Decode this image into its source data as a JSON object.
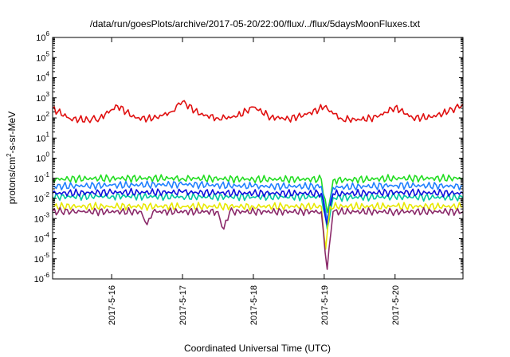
{
  "chart_data": {
    "type": "line",
    "title": "/data/run/goesPlots/archive/2017-05-20/22:00/flux/../flux/5daysMoonFluxes.txt",
    "xlabel": "Coordinated Universal Time (UTC)",
    "ylabel_parts": {
      "base": "protons/cm",
      "sup": "2",
      "rest": "-s-sr-MeV"
    },
    "x_range": [
      "2017-05-15 04:00",
      "2017-05-20 23:00"
    ],
    "x_ticks": [
      "2017-5-16",
      "2017-5-17",
      "2017-5-18",
      "2017-5-19",
      "2017-5-20"
    ],
    "y_scale": "log",
    "ylim": [
      1e-06,
      1000000.0
    ],
    "y_ticks": [
      {
        "base": "10",
        "exp": "-6"
      },
      {
        "base": "10",
        "exp": "-5"
      },
      {
        "base": "10",
        "exp": "-4"
      },
      {
        "base": "10",
        "exp": "-3"
      },
      {
        "base": "10",
        "exp": "-2"
      },
      {
        "base": "10",
        "exp": "-1"
      },
      {
        "base": "10",
        "exp": "0"
      },
      {
        "base": "10",
        "exp": "1"
      },
      {
        "base": "10",
        "exp": "2"
      },
      {
        "base": "10",
        "exp": "3"
      },
      {
        "base": "10",
        "exp": "4"
      },
      {
        "base": "10",
        "exp": "5"
      },
      {
        "base": "10",
        "exp": "6"
      }
    ],
    "grid": false,
    "legend": "none",
    "series": [
      {
        "color": "#e01010",
        "x": [
          "2017-05-15 04:00",
          "2017-05-15 10:00",
          "2017-05-15 16:00",
          "2017-05-15 20:00",
          "2017-05-16 02:00",
          "2017-05-16 08:00",
          "2017-05-16 14:00",
          "2017-05-16 20:00",
          "2017-05-17 00:00",
          "2017-05-17 06:00",
          "2017-05-17 12:00",
          "2017-05-17 18:00",
          "2017-05-18 00:00",
          "2017-05-18 06:00",
          "2017-05-18 12:00",
          "2017-05-18 18:00",
          "2017-05-19 00:00",
          "2017-05-19 06:00",
          "2017-05-19 12:00",
          "2017-05-19 18:00",
          "2017-05-20 00:00",
          "2017-05-20 06:00",
          "2017-05-20 12:00",
          "2017-05-20 18:00",
          "2017-05-20 23:00"
        ],
        "values": [
          300,
          90,
          80,
          100,
          400,
          100,
          90,
          200,
          650,
          150,
          100,
          110,
          350,
          110,
          90,
          150,
          350,
          90,
          80,
          110,
          350,
          100,
          110,
          200,
          480
        ]
      },
      {
        "color": "#22dd22",
        "x": [
          "2017-05-15 04:00",
          "2017-05-16 00:00",
          "2017-05-17 00:00",
          "2017-05-18 00:00",
          "2017-05-18 23:00",
          "2017-05-19 01:00",
          "2017-05-19 03:00",
          "2017-05-20 00:00",
          "2017-05-20 23:00"
        ],
        "values": [
          0.09,
          0.1,
          0.1,
          0.09,
          0.09,
          0.002,
          0.08,
          0.1,
          0.1
        ]
      },
      {
        "color": "#2080ff",
        "x": [
          "2017-05-15 04:00",
          "2017-05-16 00:00",
          "2017-05-17 00:00",
          "2017-05-18 00:00",
          "2017-05-18 23:00",
          "2017-05-19 01:00",
          "2017-05-19 03:00",
          "2017-05-20 00:00",
          "2017-05-20 23:00"
        ],
        "values": [
          0.04,
          0.045,
          0.05,
          0.04,
          0.04,
          0.0008,
          0.035,
          0.045,
          0.04
        ]
      },
      {
        "color": "#00c8a0",
        "x": [
          "2017-05-15 04:00",
          "2017-05-16 00:00",
          "2017-05-17 00:00",
          "2017-05-18 00:00",
          "2017-05-18 23:00",
          "2017-05-19 01:00",
          "2017-05-19 03:00",
          "2017-05-20 00:00",
          "2017-05-20 23:00"
        ],
        "values": [
          0.012,
          0.013,
          0.012,
          0.012,
          0.012,
          0.0003,
          0.011,
          0.012,
          0.011
        ]
      },
      {
        "color": "#1010dd",
        "x": [
          "2017-05-15 04:00",
          "2017-05-16 00:00",
          "2017-05-17 00:00",
          "2017-05-18 00:00",
          "2017-05-18 23:00",
          "2017-05-19 01:00",
          "2017-05-19 03:00",
          "2017-05-20 00:00",
          "2017-05-20 23:00"
        ],
        "values": [
          0.018,
          0.02,
          0.02,
          0.018,
          0.018,
          0.0005,
          0.017,
          0.02,
          0.018
        ]
      },
      {
        "color": "#e8e800",
        "x": [
          "2017-05-15 04:00",
          "2017-05-16 00:00",
          "2017-05-17 00:00",
          "2017-05-18 00:00",
          "2017-05-18 23:00",
          "2017-05-19 00:30",
          "2017-05-19 02:00",
          "2017-05-20 00:00",
          "2017-05-20 23:00"
        ],
        "values": [
          0.004,
          0.004,
          0.004,
          0.004,
          0.004,
          3e-05,
          0.004,
          0.004,
          0.004
        ]
      },
      {
        "color": "#8b2a6a",
        "x": [
          "2017-05-15 04:00",
          "2017-05-15 14:00",
          "2017-05-16 10:00",
          "2017-05-16 12:00",
          "2017-05-16 14:00",
          "2017-05-17 12:00",
          "2017-05-17 14:00",
          "2017-05-17 16:00",
          "2017-05-18 23:00",
          "2017-05-19 01:00",
          "2017-05-19 03:00",
          "2017-05-20 00:00",
          "2017-05-20 23:00"
        ],
        "values": [
          0.0023,
          0.0022,
          0.0022,
          0.0005,
          0.0022,
          0.0022,
          0.0003,
          0.0022,
          0.0022,
          3e-06,
          0.0022,
          0.0022,
          0.0022
        ]
      }
    ]
  }
}
